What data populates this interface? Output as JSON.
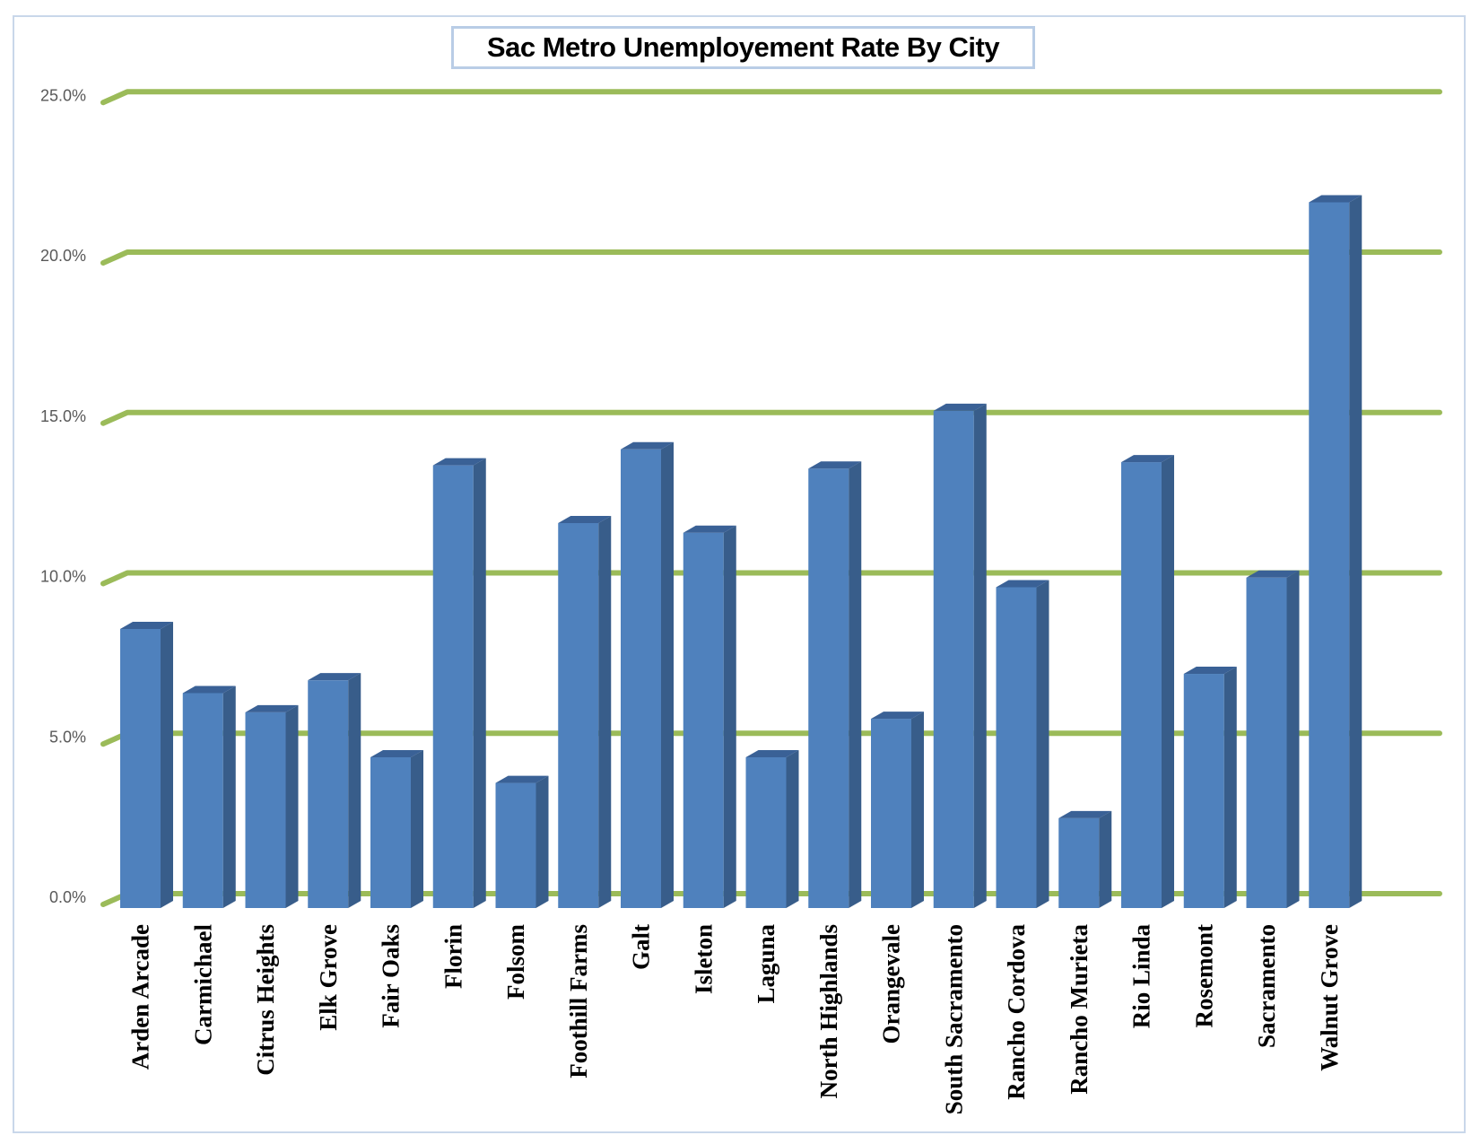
{
  "chart_data": {
    "type": "bar",
    "title": "Sac Metro Unemployement Rate By City",
    "xlabel": "",
    "ylabel": "",
    "ylim": [
      0,
      25
    ],
    "yticks": [
      "0.0%",
      "5.0%",
      "10.0%",
      "15.0%",
      "20.0%",
      "25.0%"
    ],
    "grid": true,
    "legend": "none",
    "categories": [
      "Arden Arcade",
      "Carmichael",
      "Citrus Heights",
      "Elk Grove",
      "Fair Oaks",
      "Florin",
      "Folsom",
      "Foothill Farms",
      "Galt",
      "Isleton",
      "Laguna",
      "North Highlands",
      "Orangevale",
      "South Sacramento",
      "Rancho Cordova",
      "Rancho Murieta",
      "Rio Linda",
      "Rosemont",
      "Sacramento",
      "Walnut Grove"
    ],
    "values": [
      8.7,
      6.7,
      6.1,
      7.1,
      4.7,
      13.8,
      3.9,
      12.0,
      14.3,
      11.7,
      4.7,
      13.7,
      5.9,
      15.5,
      10.0,
      2.8,
      13.9,
      7.3,
      10.3,
      22.0
    ],
    "colors": {
      "bar_front": "#4f81bd",
      "bar_side": "#385d8a",
      "bar_top": "#3a6196",
      "grid": "#9bbb59",
      "tick_text": "#595959"
    }
  }
}
